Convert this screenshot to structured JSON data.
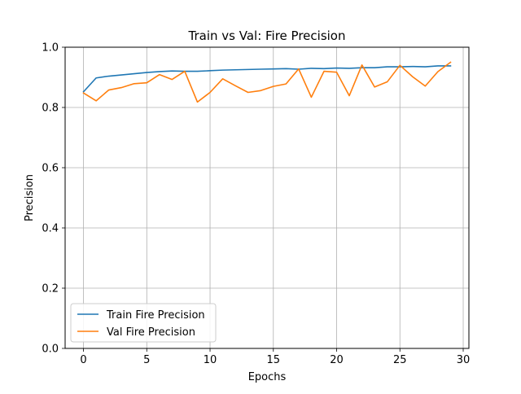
{
  "chart_data": {
    "type": "line",
    "title": "Train vs Val: Fire Precision",
    "xlabel": "Epochs",
    "ylabel": "Precision",
    "xlim": [
      -1.45,
      30.45
    ],
    "ylim": [
      0.0,
      1.0
    ],
    "xticks": [
      0,
      5,
      10,
      15,
      20,
      25,
      30
    ],
    "yticks": [
      0.0,
      0.2,
      0.4,
      0.6,
      0.8,
      1.0
    ],
    "xtick_labels": [
      "0",
      "5",
      "10",
      "15",
      "20",
      "25",
      "30"
    ],
    "ytick_labels": [
      "0.0",
      "0.2",
      "0.4",
      "0.6",
      "0.8",
      "1.0"
    ],
    "grid": true,
    "legend_position": "lower-left",
    "x": [
      0,
      1,
      2,
      3,
      4,
      5,
      6,
      7,
      8,
      9,
      10,
      11,
      12,
      13,
      14,
      15,
      16,
      17,
      18,
      19,
      20,
      21,
      22,
      23,
      24,
      25,
      26,
      27,
      28,
      29
    ],
    "series": [
      {
        "name": "Train Fire Precision",
        "color": "#1f77b4",
        "values": [
          0.852,
          0.898,
          0.904,
          0.908,
          0.912,
          0.916,
          0.919,
          0.921,
          0.92,
          0.92,
          0.922,
          0.924,
          0.925,
          0.926,
          0.927,
          0.928,
          0.929,
          0.927,
          0.93,
          0.929,
          0.931,
          0.93,
          0.932,
          0.932,
          0.935,
          0.935,
          0.936,
          0.935,
          0.938,
          0.938
        ]
      },
      {
        "name": "Val Fire Precision",
        "color": "#ff7f0e",
        "values": [
          0.848,
          0.822,
          0.858,
          0.866,
          0.879,
          0.882,
          0.909,
          0.893,
          0.92,
          0.818,
          0.85,
          0.895,
          0.872,
          0.85,
          0.856,
          0.87,
          0.878,
          0.928,
          0.834,
          0.92,
          0.917,
          0.839,
          0.941,
          0.868,
          0.885,
          0.94,
          0.902,
          0.871,
          0.919,
          0.95
        ]
      }
    ]
  }
}
